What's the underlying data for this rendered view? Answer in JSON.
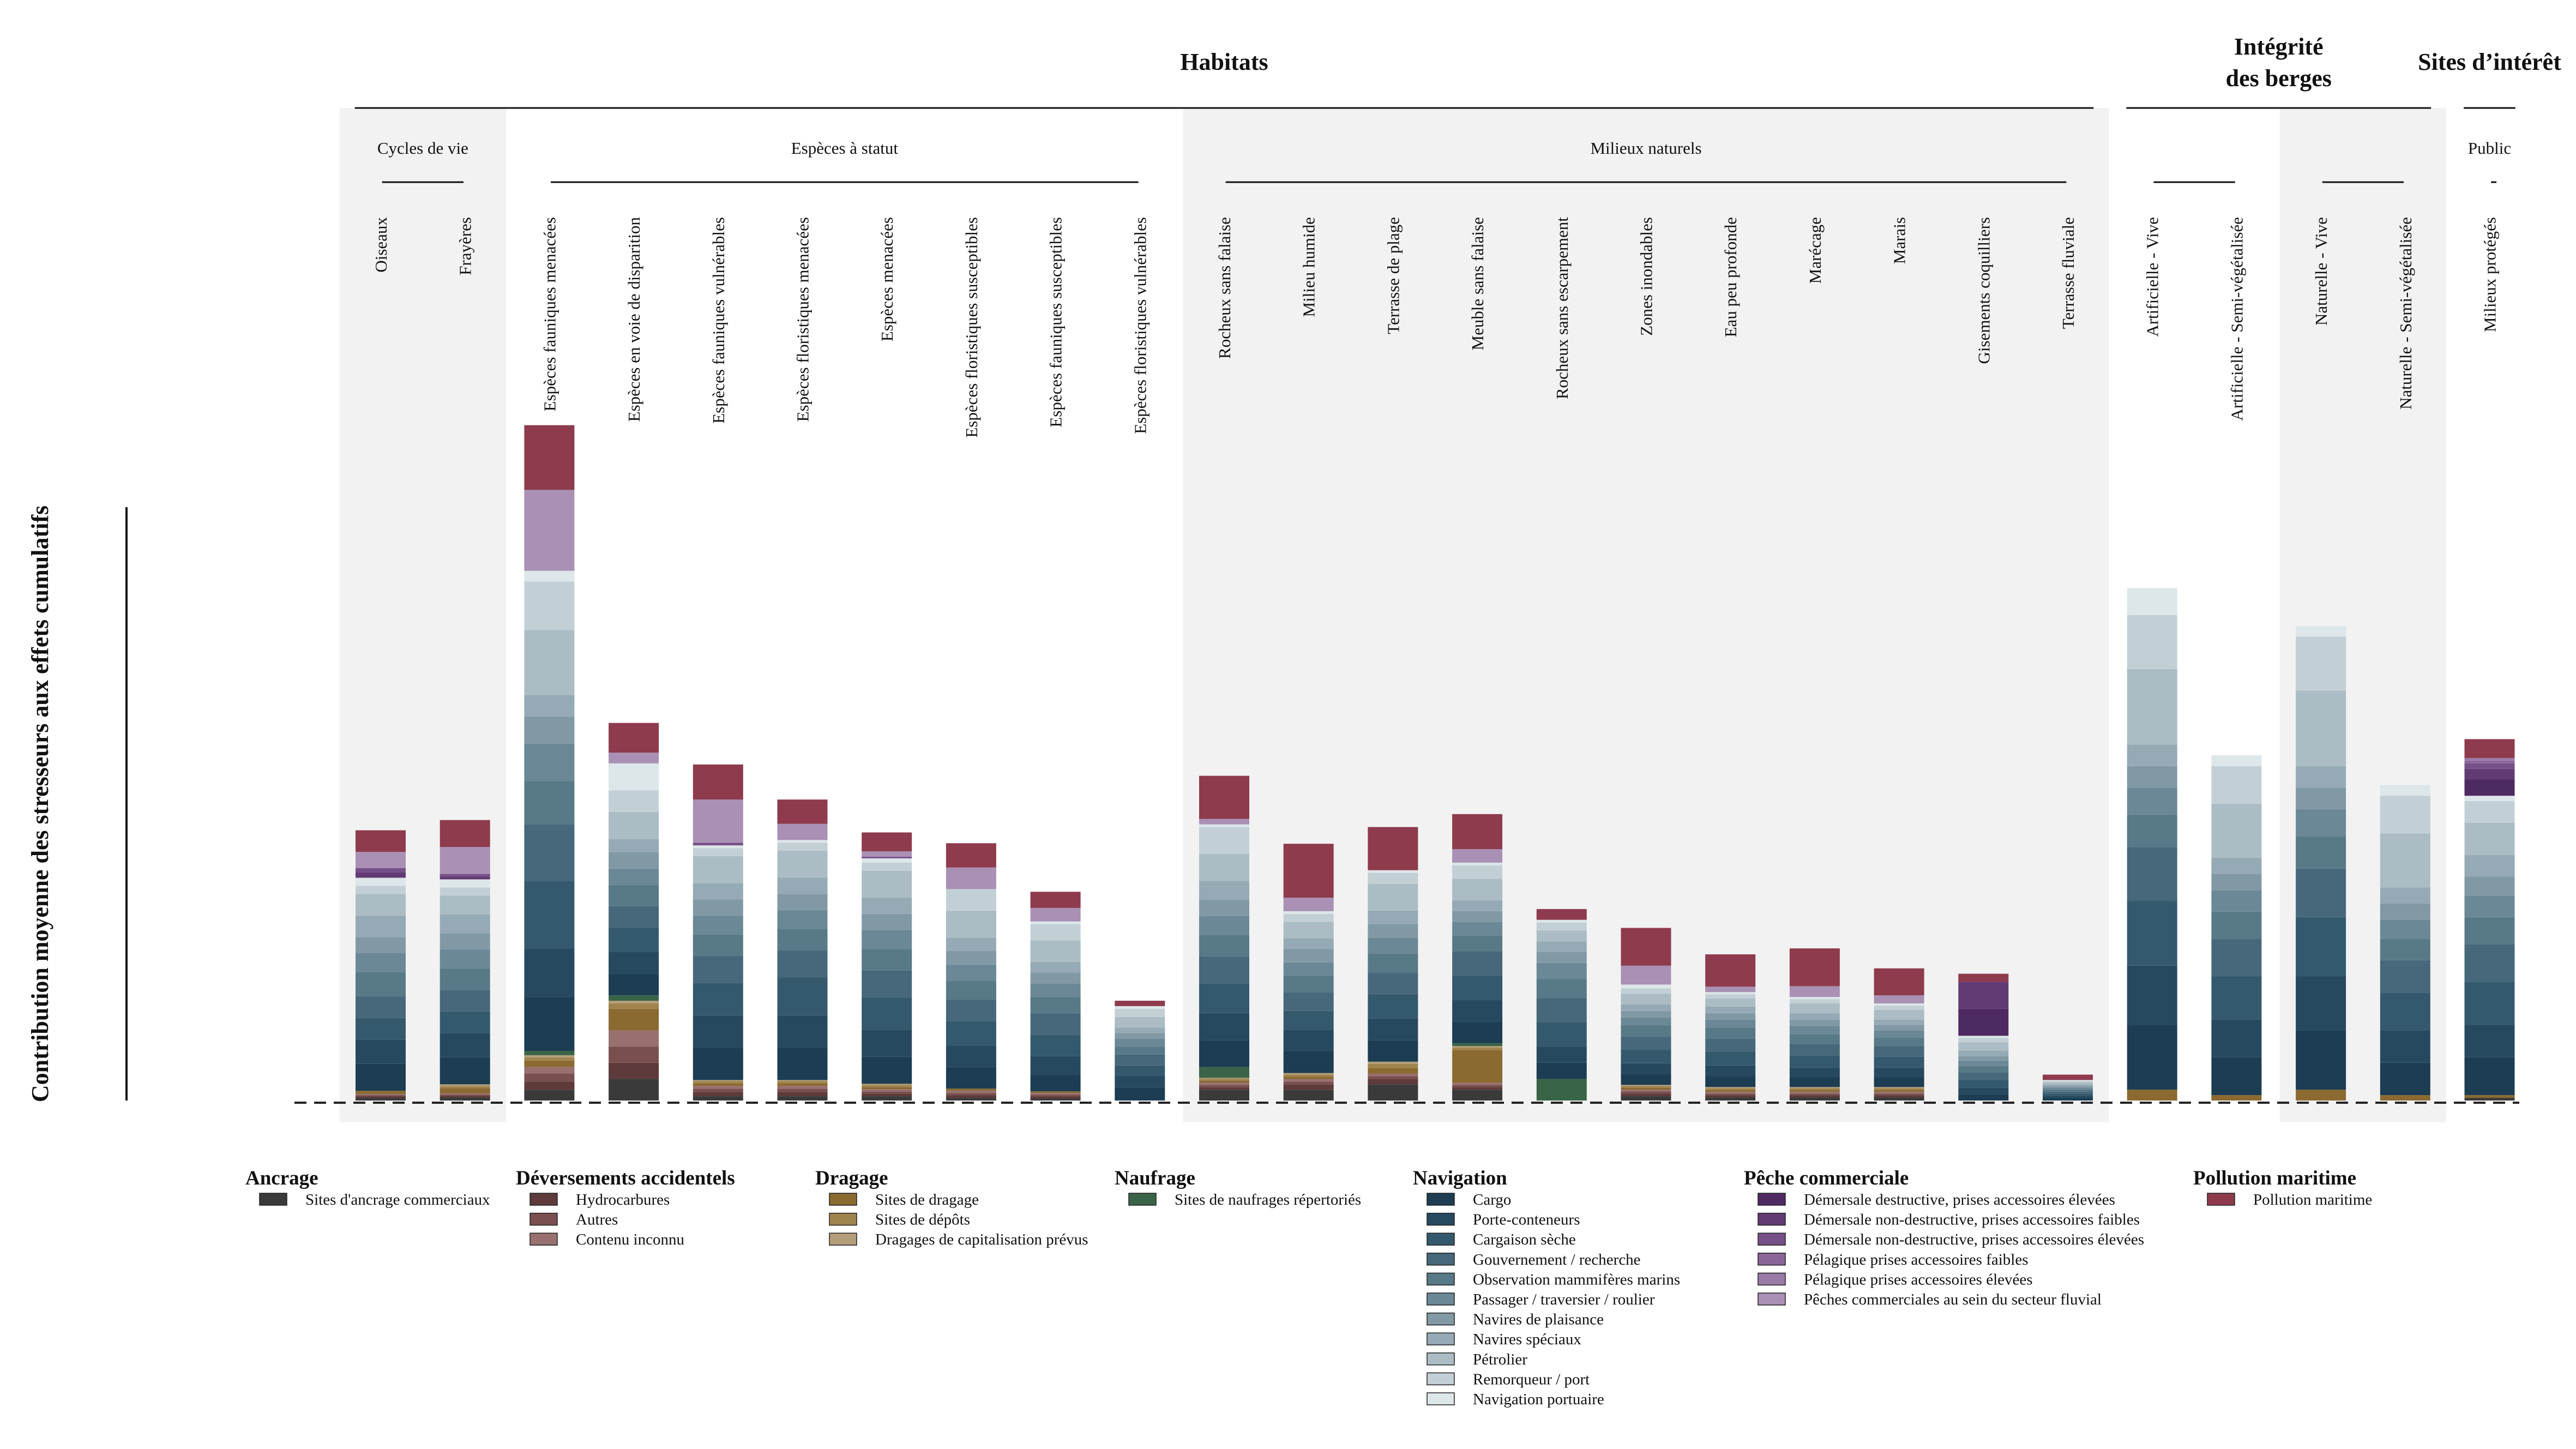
{
  "chart_data": {
    "type": "bar",
    "stacked": true,
    "ylabel": "Contribution moyenne des stresseurs aux effets cumulatifs",
    "grid": false,
    "legend_position": "bottom",
    "groups": [
      {
        "title": "Habitats",
        "subgroups": [
          {
            "title": "Cycles de vie",
            "categories": [
              "Oiseaux",
              "Frayères"
            ]
          },
          {
            "title": "Espèces à statut",
            "categories": [
              "Espèces fauniques menacées",
              "Espèces en voie de disparition",
              "Espèces fauniques vulnérables",
              "Espèces floristiques menacées",
              "Espèces menacées",
              "Espèces floristiques susceptibles",
              "Espèces fauniques susceptibles",
              "Espèces floristiques vulnérables"
            ]
          },
          {
            "title": "Milieux naturels",
            "categories": [
              "Rocheux sans falaise",
              "Milieu humide",
              "Terrasse de plage",
              "Meuble sans falaise",
              "Rocheux sans escarpement",
              "Zones inondables",
              "Eau peu profonde",
              "Marécage",
              "Marais",
              "Gisements coquilliers",
              "Terrasse fluviale"
            ]
          }
        ]
      },
      {
        "title": "Intégrité des berges",
        "title_lines": [
          "Intégrité",
          "des berges"
        ],
        "subgroups": [
          {
            "title": "",
            "categories": [
              "Artificielle - Vive",
              "Artificielle - Semi-végétalisée"
            ]
          },
          {
            "title": "",
            "categories": [
              "Naturelle - Vive",
              "Naturelle - Semi-végétalisée"
            ]
          }
        ]
      },
      {
        "title": "Sites d’intérêt",
        "subgroups": [
          {
            "title": "Public",
            "categories": [
              "Milieux protégés"
            ]
          }
        ]
      }
    ],
    "categories": [
      "Oiseaux",
      "Frayères",
      "Espèces fauniques menacées",
      "Espèces en voie de disparition",
      "Espèces fauniques vulnérables",
      "Espèces floristiques menacées",
      "Espèces menacées",
      "Espèces floristiques susceptibles",
      "Espèces fauniques susceptibles",
      "Espèces floristiques vulnérables",
      "Rocheux sans falaise",
      "Milieu humide",
      "Terrasse de plage",
      "Meuble sans falaise",
      "Rocheux sans escarpement",
      "Zones inondables",
      "Eau peu profonde",
      "Marécage",
      "Marais",
      "Gisements coquilliers",
      "Terrasse fluviale",
      "Artificielle - Vive",
      "Artificielle - Semi-végétalisée",
      "Naturelle - Vive",
      "Naturelle - Semi-végétalisée",
      "Milieux protégés"
    ],
    "legend_groups": [
      {
        "title": "Ancrage",
        "items": [
          {
            "name": "Sites d'ancrage commerciaux",
            "color": "#3a3a3a"
          }
        ]
      },
      {
        "title": "Déversements accidentels",
        "items": [
          {
            "name": "Hydrocarbures",
            "color": "#5e3a3a"
          },
          {
            "name": "Autres",
            "color": "#7a4f4f"
          },
          {
            "name": "Contenu inconnu",
            "color": "#987070"
          }
        ]
      },
      {
        "title": "Dragage",
        "items": [
          {
            "name": "Sites de dragage",
            "color": "#8a6a30"
          },
          {
            "name": "Sites de dépôts",
            "color": "#a0844e"
          },
          {
            "name": "Dragages de capitalisation prévus",
            "color": "#b39e7a"
          }
        ]
      },
      {
        "title": "Naufrage",
        "items": [
          {
            "name": "Sites de naufrages répertoriés",
            "color": "#3a6448"
          }
        ]
      },
      {
        "title": "Navigation",
        "items": [
          {
            "name": "Cargo",
            "color": "#1c3d52"
          },
          {
            "name": "Porte-conteneurs",
            "color": "#27495f"
          },
          {
            "name": "Cargaison sèche",
            "color": "#34596d"
          },
          {
            "name": "Gouvernement / recherche",
            "color": "#46687a"
          },
          {
            "name": "Observation mammifères marins",
            "color": "#587987"
          },
          {
            "name": "Passager / traversier / roulier",
            "color": "#6b8896"
          },
          {
            "name": "Navires de plaisance",
            "color": "#8199a5"
          },
          {
            "name": "Navires spéciaux",
            "color": "#95aab4"
          },
          {
            "name": "Pétrolier",
            "color": "#abbcc4"
          },
          {
            "name": "Remorqueur / port",
            "color": "#c2d0d6"
          },
          {
            "name": "Navigation portuaire",
            "color": "#dde6e9"
          }
        ]
      },
      {
        "title": "Pêche commerciale",
        "items": [
          {
            "name": "Démersale destructive, prises accessoires élevées",
            "color": "#4e2a63"
          },
          {
            "name": "Démersale non-destructive, prises accessoires faibles",
            "color": "#623b75"
          },
          {
            "name": "Démersale non-destructive, prises accessoires élevées",
            "color": "#765088"
          },
          {
            "name": "Pélagique prises accessoires faibles",
            "color": "#8a6598"
          },
          {
            "name": "Pélagique prises accessoires élevées",
            "color": "#9a7ca7"
          },
          {
            "name": "Pêches commerciales au sein du secteur fluvial",
            "color": "#a990b4"
          }
        ]
      },
      {
        "title": "Pollution maritime",
        "items": [
          {
            "name": "Pollution maritime",
            "color": "#8e3b4d"
          }
        ]
      }
    ],
    "series_order": [
      "Sites d'ancrage commerciaux",
      "Hydrocarbures",
      "Autres",
      "Contenu inconnu",
      "Sites de dragage",
      "Sites de dépôts",
      "Dragages de capitalisation prévus",
      "Sites de naufrages répertoriés",
      "Cargo",
      "Porte-conteneurs",
      "Cargaison sèche",
      "Gouvernement / recherche",
      "Observation mammifères marins",
      "Passager / traversier / roulier",
      "Navires de plaisance",
      "Navires spéciaux",
      "Pétrolier",
      "Remorqueur / port",
      "Navigation portuaire",
      "Démersale destructive, prises accessoires élevées",
      "Démersale non-destructive, prises accessoires faibles",
      "Démersale non-destructive, prises accessoires élevées",
      "Pélagique prises accessoires faibles",
      "Pélagique prises accessoires élevées",
      "Pêches commerciales au sein du secteur fluvial",
      "Pollution maritime"
    ],
    "values": [
      [
        0.005,
        0.003,
        0.002,
        0.002,
        0.006,
        0,
        0,
        0,
        0.05,
        0.045,
        0.04,
        0.04,
        0.045,
        0.035,
        0.03,
        0.04,
        0.04,
        0.015,
        0.015,
        0,
        0.01,
        0.008,
        0,
        0,
        0.03,
        0.04
      ],
      [
        0.006,
        0.003,
        0.002,
        0.002,
        0.01,
        0.004,
        0.003,
        0,
        0.05,
        0.045,
        0.04,
        0.04,
        0.04,
        0.035,
        0.03,
        0.035,
        0.035,
        0.015,
        0.015,
        0,
        0.005,
        0.005,
        0,
        0,
        0.05,
        0.05
      ],
      [
        0.02,
        0.015,
        0.015,
        0.012,
        0.012,
        0.006,
        0.004,
        0.008,
        0.1,
        0.09,
        0.125,
        0.105,
        0.08,
        0.07,
        0.05,
        0.04,
        0.12,
        0.09,
        0.02,
        0,
        0,
        0,
        0,
        0,
        0.15,
        0.12
      ],
      [
        0.04,
        0.03,
        0.03,
        0.03,
        0.04,
        0.01,
        0.005,
        0.01,
        0.04,
        0.04,
        0.045,
        0.04,
        0.04,
        0.03,
        0.03,
        0.025,
        0.05,
        0.04,
        0.05,
        0,
        0,
        0,
        0,
        0,
        0.02,
        0.055
      ],
      [
        0.008,
        0.008,
        0.006,
        0.005,
        0.005,
        0.004,
        0.002,
        0,
        0.06,
        0.06,
        0.06,
        0.05,
        0.04,
        0.035,
        0.03,
        0.03,
        0.05,
        0.015,
        0.005,
        0,
        0,
        0.005,
        0,
        0,
        0.08,
        0.065
      ],
      [
        0.008,
        0.008,
        0.006,
        0.005,
        0.005,
        0.004,
        0.002,
        0,
        0.06,
        0.06,
        0.07,
        0.05,
        0.04,
        0.035,
        0.03,
        0.03,
        0.05,
        0.015,
        0.005,
        0,
        0,
        0,
        0,
        0,
        0.03,
        0.045
      ],
      [
        0.008,
        0.005,
        0.004,
        0.004,
        0.004,
        0.004,
        0.002,
        0,
        0.05,
        0.05,
        0.06,
        0.05,
        0.04,
        0.035,
        0.03,
        0.03,
        0.05,
        0.015,
        0.008,
        0,
        0,
        0.003,
        0,
        0,
        0.01,
        0.035
      ],
      [
        0.005,
        0.005,
        0.004,
        0.004,
        0.004,
        0,
        0,
        0,
        0.04,
        0.04,
        0.045,
        0.04,
        0.035,
        0.03,
        0.025,
        0.025,
        0.05,
        0.04,
        0,
        0,
        0,
        0,
        0,
        0,
        0.04,
        0.045
      ],
      [
        0.004,
        0.004,
        0.003,
        0.003,
        0.003,
        0,
        0,
        0,
        0.03,
        0.035,
        0.04,
        0.04,
        0.03,
        0.025,
        0.02,
        0.02,
        0.04,
        0.03,
        0.005,
        0,
        0,
        0,
        0,
        0,
        0.025,
        0.03
      ],
      [
        0,
        0,
        0,
        0,
        0,
        0,
        0,
        0,
        0.025,
        0.02,
        0.02,
        0.02,
        0.015,
        0.015,
        0.01,
        0.01,
        0.02,
        0.015,
        0.005,
        0,
        0,
        0,
        0,
        0,
        0,
        0.01
      ],
      [
        0.02,
        0.005,
        0.004,
        0.004,
        0.004,
        0.003,
        0.002,
        0.02,
        0.05,
        0.05,
        0.055,
        0.05,
        0.04,
        0.035,
        0.03,
        0.035,
        0.05,
        0.05,
        0.005,
        0,
        0,
        0,
        0,
        0,
        0.01,
        0.08
      ],
      [
        0.02,
        0.01,
        0.005,
        0.005,
        0.004,
        0.004,
        0.003,
        0,
        0.04,
        0.04,
        0.035,
        0.035,
        0.03,
        0.025,
        0.025,
        0.02,
        0.03,
        0.015,
        0.005,
        0,
        0,
        0,
        0,
        0,
        0.025,
        0.1
      ],
      [
        0.03,
        0.01,
        0.005,
        0.005,
        0.01,
        0.008,
        0.004,
        0,
        0.04,
        0.04,
        0.045,
        0.04,
        0.035,
        0.03,
        0.025,
        0.025,
        0.05,
        0.02,
        0.005,
        0,
        0,
        0,
        0,
        0,
        0,
        0.08
      ],
      [
        0.02,
        0.005,
        0.004,
        0.004,
        0.06,
        0.005,
        0.003,
        0.005,
        0.04,
        0.04,
        0.045,
        0.045,
        0.03,
        0.025,
        0.02,
        0.02,
        0.04,
        0.025,
        0.005,
        0,
        0,
        0,
        0,
        0,
        0.025,
        0.065
      ],
      [
        0,
        0,
        0,
        0,
        0,
        0,
        0,
        0.04,
        0.03,
        0.03,
        0.045,
        0.045,
        0.035,
        0.03,
        0.02,
        0.02,
        0.02,
        0.015,
        0.005,
        0,
        0,
        0,
        0,
        0,
        0,
        0.02
      ],
      [
        0.008,
        0.005,
        0.004,
        0.003,
        0.004,
        0.003,
        0.002,
        0,
        0.02,
        0.02,
        0.025,
        0.025,
        0.02,
        0.015,
        0.012,
        0.012,
        0.02,
        0.01,
        0.007,
        0,
        0,
        0,
        0,
        0,
        0.035,
        0.07
      ],
      [
        0.006,
        0.004,
        0.003,
        0.003,
        0.004,
        0.003,
        0.002,
        0,
        0.02,
        0.02,
        0.025,
        0.025,
        0.02,
        0.015,
        0.012,
        0.012,
        0.015,
        0.008,
        0.004,
        0,
        0,
        0,
        0,
        0,
        0.01,
        0.06
      ],
      [
        0.006,
        0.004,
        0.003,
        0.003,
        0.004,
        0.003,
        0.002,
        0,
        0.018,
        0.018,
        0.022,
        0.022,
        0.018,
        0.015,
        0.012,
        0.012,
        0.018,
        0.008,
        0.004,
        0,
        0,
        0,
        0,
        0,
        0.02,
        0.07
      ],
      [
        0.006,
        0.004,
        0.003,
        0.003,
        0.004,
        0.003,
        0.002,
        0,
        0.018,
        0.018,
        0.02,
        0.02,
        0.016,
        0.013,
        0.01,
        0.01,
        0.018,
        0.008,
        0.004,
        0,
        0,
        0,
        0,
        0,
        0.015,
        0.05
      ],
      [
        0,
        0,
        0,
        0,
        0,
        0,
        0,
        0,
        0.012,
        0.012,
        0.014,
        0.014,
        0.012,
        0.01,
        0.008,
        0.01,
        0.016,
        0.008,
        0.004,
        0.05,
        0.05,
        0,
        0,
        0,
        0,
        0.015
      ],
      [
        0,
        0,
        0,
        0,
        0,
        0,
        0,
        0,
        0.005,
        0.004,
        0.004,
        0.004,
        0.004,
        0.003,
        0.003,
        0.003,
        0.004,
        0.002,
        0.002,
        0,
        0,
        0,
        0,
        0,
        0,
        0.01
      ],
      [
        0,
        0,
        0,
        0,
        0.02,
        0,
        0,
        0,
        0.12,
        0.11,
        0.12,
        0.1,
        0.06,
        0.05,
        0.04,
        0.04,
        0.14,
        0.1,
        0.05,
        0,
        0,
        0,
        0,
        0,
        0,
        0
      ],
      [
        0,
        0,
        0,
        0,
        0.01,
        0,
        0,
        0,
        0.07,
        0.07,
        0.08,
        0.07,
        0.05,
        0.04,
        0.03,
        0.03,
        0.1,
        0.07,
        0.02,
        0,
        0,
        0,
        0,
        0,
        0,
        0
      ],
      [
        0,
        0,
        0,
        0,
        0.02,
        0,
        0,
        0,
        0.11,
        0.1,
        0.11,
        0.09,
        0.06,
        0.05,
        0.04,
        0.04,
        0.14,
        0.1,
        0.02,
        0,
        0,
        0,
        0,
        0,
        0,
        0
      ],
      [
        0,
        0,
        0,
        0,
        0.01,
        0,
        0,
        0,
        0.06,
        0.06,
        0.07,
        0.06,
        0.04,
        0.035,
        0.03,
        0.03,
        0.1,
        0.07,
        0.02,
        0,
        0,
        0,
        0,
        0,
        0,
        0
      ],
      [
        0.005,
        0,
        0,
        0,
        0.005,
        0,
        0,
        0,
        0.07,
        0.06,
        0.08,
        0.07,
        0.05,
        0.04,
        0.035,
        0.04,
        0.06,
        0.04,
        0.01,
        0.03,
        0.02,
        0.01,
        0.005,
        0.005,
        0,
        0.035
      ]
    ],
    "ylim": [
      0,
      1.3
    ]
  }
}
